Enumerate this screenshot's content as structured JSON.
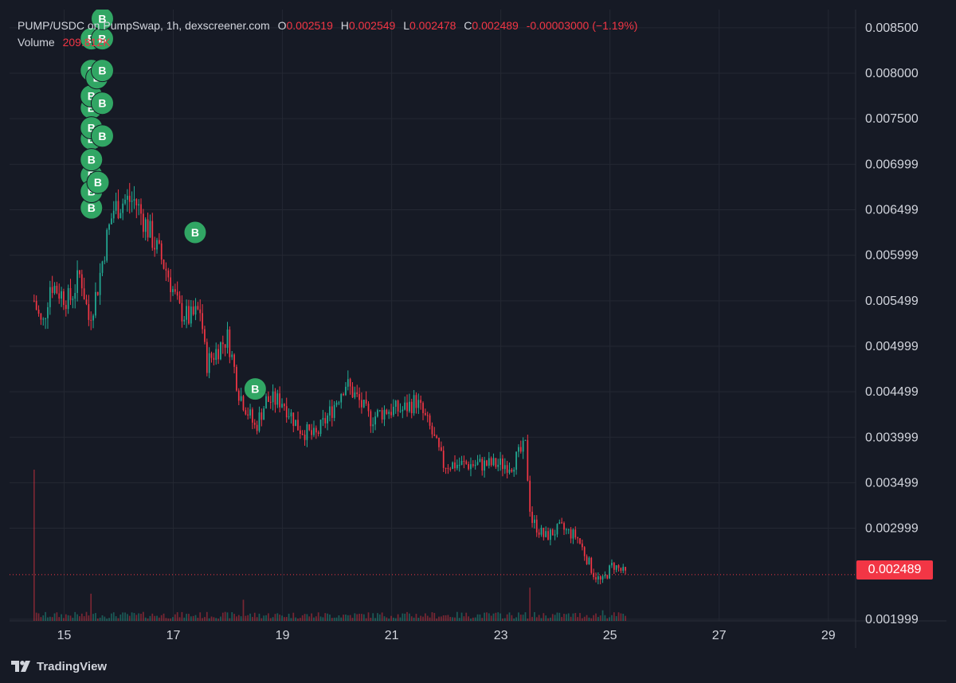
{
  "legend": {
    "symbol": "PUMP/USDC on PumpSwap, 1h, dexscreener.com",
    "o_label": "O",
    "o_value": "0.002519",
    "h_label": "H",
    "h_value": "0.002549",
    "l_label": "L",
    "l_value": "0.002478",
    "c_label": "C",
    "c_value": "0.002489",
    "change": "-0.00003000 (−1.19%)",
    "volume_label": "Volume",
    "volume_value": "209.812K"
  },
  "last_price": "0.002489",
  "branding": {
    "name": "TradingView"
  },
  "colors": {
    "background": "#161a25",
    "grid": "#242833",
    "axis_text": "#d1d4dc",
    "up": "#22ab94",
    "down": "#f23645",
    "buy_marker": "#31a664"
  },
  "chart_data": {
    "type": "candlestick",
    "interval": "1h",
    "x_tick_labels": [
      "15",
      "17",
      "19",
      "21",
      "23",
      "25",
      "27",
      "29"
    ],
    "x_tick_days": [
      15,
      17,
      19,
      21,
      23,
      25,
      27,
      29
    ],
    "y_tick_labels": [
      "0.008500",
      "0.008000",
      "0.007500",
      "0.006999",
      "0.006499",
      "0.005999",
      "0.005499",
      "0.004999",
      "0.004499",
      "0.003999",
      "0.003499",
      "0.002999",
      "0.001999"
    ],
    "y_tick_values": [
      0.0085,
      0.008,
      0.0075,
      0.006999,
      0.006499,
      0.005999,
      0.005499,
      0.004999,
      0.004499,
      0.003999,
      0.003499,
      0.002999,
      0.001999
    ],
    "ylim": [
      0.00198,
      0.0087
    ],
    "xlim_days": [
      14.0,
      29.5
    ],
    "grid": true,
    "price_anchors": [
      {
        "day": 14.45,
        "price": 0.0055
      },
      {
        "day": 14.6,
        "price": 0.0052
      },
      {
        "day": 14.75,
        "price": 0.0057
      },
      {
        "day": 14.9,
        "price": 0.0056
      },
      {
        "day": 15.1,
        "price": 0.0055
      },
      {
        "day": 15.3,
        "price": 0.0058
      },
      {
        "day": 15.45,
        "price": 0.0053
      },
      {
        "day": 15.6,
        "price": 0.0056
      },
      {
        "day": 15.75,
        "price": 0.0061
      },
      {
        "day": 15.9,
        "price": 0.0065
      },
      {
        "day": 16.1,
        "price": 0.0066
      },
      {
        "day": 16.3,
        "price": 0.0066
      },
      {
        "day": 16.6,
        "price": 0.0062
      },
      {
        "day": 16.9,
        "price": 0.0058
      },
      {
        "day": 17.1,
        "price": 0.0054
      },
      {
        "day": 17.3,
        "price": 0.0053
      },
      {
        "day": 17.5,
        "price": 0.0054
      },
      {
        "day": 17.6,
        "price": 0.0048
      },
      {
        "day": 17.85,
        "price": 0.005
      },
      {
        "day": 18.0,
        "price": 0.0051
      },
      {
        "day": 18.2,
        "price": 0.0045
      },
      {
        "day": 18.5,
        "price": 0.0041
      },
      {
        "day": 18.7,
        "price": 0.0044
      },
      {
        "day": 19.0,
        "price": 0.0044
      },
      {
        "day": 19.3,
        "price": 0.0041
      },
      {
        "day": 19.6,
        "price": 0.004
      },
      {
        "day": 19.9,
        "price": 0.0043
      },
      {
        "day": 20.15,
        "price": 0.0046
      },
      {
        "day": 20.4,
        "price": 0.0044
      },
      {
        "day": 20.6,
        "price": 0.0042
      },
      {
        "day": 20.9,
        "price": 0.0043
      },
      {
        "day": 21.2,
        "price": 0.0043
      },
      {
        "day": 21.45,
        "price": 0.0044
      },
      {
        "day": 21.7,
        "price": 0.0041
      },
      {
        "day": 21.95,
        "price": 0.0037
      },
      {
        "day": 22.4,
        "price": 0.0037
      },
      {
        "day": 22.8,
        "price": 0.0037
      },
      {
        "day": 23.2,
        "price": 0.0037
      },
      {
        "day": 23.45,
        "price": 0.0039
      },
      {
        "day": 23.55,
        "price": 0.0031
      },
      {
        "day": 23.8,
        "price": 0.0029
      },
      {
        "day": 24.1,
        "price": 0.003
      },
      {
        "day": 24.4,
        "price": 0.0029
      },
      {
        "day": 24.7,
        "price": 0.0025
      },
      {
        "day": 24.85,
        "price": 0.0024
      },
      {
        "day": 25.05,
        "price": 0.0026
      },
      {
        "day": 25.3,
        "price": 0.002489
      }
    ],
    "candles_per_day": 24,
    "buy_markers": [
      {
        "day": 15.5,
        "price": 0.00838
      },
      {
        "day": 15.5,
        "price": 0.00803
      },
      {
        "day": 15.5,
        "price": 0.00762
      },
      {
        "day": 15.5,
        "price": 0.00728
      },
      {
        "day": 15.5,
        "price": 0.00688
      },
      {
        "day": 15.5,
        "price": 0.00652
      },
      {
        "day": 15.5,
        "price": 0.0067
      },
      {
        "day": 15.5,
        "price": 0.00775
      },
      {
        "day": 15.5,
        "price": 0.0074
      },
      {
        "day": 15.5,
        "price": 0.00705
      },
      {
        "day": 15.6,
        "price": 0.00795
      },
      {
        "day": 15.62,
        "price": 0.0068
      },
      {
        "day": 15.7,
        "price": 0.00838
      },
      {
        "day": 15.7,
        "price": 0.00803
      },
      {
        "day": 15.7,
        "price": 0.00767
      },
      {
        "day": 15.7,
        "price": 0.00731
      },
      {
        "day": 15.7,
        "price": 0.0086
      },
      {
        "day": 17.4,
        "price": 0.00625
      },
      {
        "day": 18.5,
        "price": 0.00453
      }
    ],
    "buy_marker_label": "B",
    "volume": {
      "spike_day": 14.45,
      "spike_fraction": 1.0,
      "typical_fraction": 0.05,
      "secondary_spikes": [
        {
          "day": 15.5,
          "fraction": 0.18
        },
        {
          "day": 18.3,
          "fraction": 0.14
        },
        {
          "day": 23.55,
          "fraction": 0.22
        },
        {
          "day": 24.85,
          "fraction": 0.07
        }
      ]
    }
  }
}
